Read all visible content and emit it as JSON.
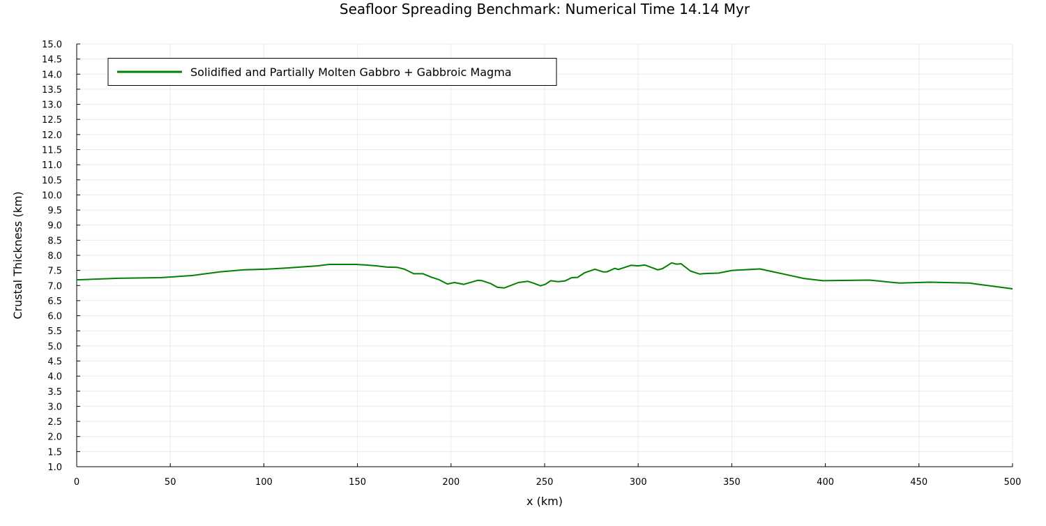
{
  "chart_data": {
    "type": "line",
    "title": "Seafloor Spreading Benchmark: Numerical Time 14.14 Myr",
    "xlabel": "x (km)",
    "ylabel": "Crustal Thickness (km)",
    "xlim": [
      0,
      500
    ],
    "ylim": [
      1.0,
      15.0
    ],
    "xticks": [
      0,
      50,
      100,
      150,
      200,
      250,
      300,
      350,
      400,
      450,
      500
    ],
    "yticks": [
      "1.0",
      "1.5",
      "2.0",
      "2.5",
      "3.0",
      "3.5",
      "4.0",
      "4.5",
      "5.0",
      "5.5",
      "6.0",
      "6.5",
      "7.0",
      "7.5",
      "8.0",
      "8.5",
      "9.0",
      "9.5",
      "10.0",
      "10.5",
      "11.0",
      "11.5",
      "12.0",
      "12.5",
      "13.0",
      "13.5",
      "14.0",
      "14.5",
      "15.0"
    ],
    "grid": true,
    "legend_position": "top-left",
    "series": [
      {
        "name": "Solidified and Partially Molten Gabbro + Gabbroic Magma",
        "color": "#008000",
        "x": [
          0,
          22.4,
          44.7,
          61.5,
          76.4,
          89.4,
          100.6,
          111.8,
          128.5,
          134.9,
          149,
          154.6,
          160.2,
          165.8,
          171.4,
          175.1,
          180.1,
          185,
          189.4,
          193.7,
          198.1,
          201.8,
          206.8,
          214.2,
          216.7,
          221,
          224.8,
          228.5,
          236,
          240.9,
          244,
          247.8,
          250.3,
          253.3,
          257.1,
          260.8,
          264.5,
          267.6,
          271.3,
          276.9,
          281.3,
          283.2,
          287.5,
          289.4,
          296.2,
          299.9,
          303.6,
          310.5,
          313,
          317.9,
          320.4,
          322.9,
          327.9,
          332.8,
          336.6,
          342.8,
          350.2,
          365.1,
          388.7,
          398.7,
          423.5,
          439.6,
          455.8,
          476.9,
          500
        ],
        "y": [
          7.19,
          7.24,
          7.26,
          7.33,
          7.45,
          7.52,
          7.54,
          7.58,
          7.65,
          7.7,
          7.7,
          7.68,
          7.65,
          7.61,
          7.6,
          7.54,
          7.39,
          7.39,
          7.28,
          7.19,
          7.05,
          7.1,
          7.04,
          7.17,
          7.16,
          7.07,
          6.94,
          6.92,
          7.1,
          7.14,
          7.08,
          6.99,
          7.04,
          7.16,
          7.13,
          7.15,
          7.26,
          7.27,
          7.42,
          7.54,
          7.45,
          7.45,
          7.57,
          7.53,
          7.67,
          7.65,
          7.68,
          7.52,
          7.56,
          7.75,
          7.71,
          7.72,
          7.48,
          7.38,
          7.4,
          7.41,
          7.5,
          7.55,
          7.23,
          7.16,
          7.18,
          7.08,
          7.11,
          7.08,
          6.89
        ]
      }
    ]
  }
}
